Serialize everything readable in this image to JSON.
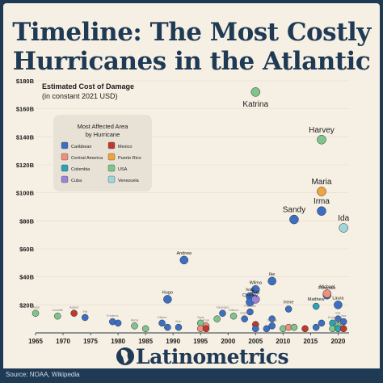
{
  "title_line1": "Timeline: The Most Costly",
  "title_line2": "Hurricanes in the Atlantic",
  "source": "Source: NOAA, Wikipedia",
  "brand": "Latinometrics",
  "chart_data": {
    "type": "scatter",
    "ylabel": "Estimated Cost of Damage",
    "ylabel_sub": "(in constant 2021 USD)",
    "xlim": [
      1965,
      2022
    ],
    "ylim": [
      0,
      180
    ],
    "x_ticks": [
      1965,
      1970,
      1975,
      1980,
      1985,
      1990,
      1995,
      2000,
      2005,
      2010,
      2015,
      2020
    ],
    "y_ticks": [
      {
        "v": 20,
        "label": "$20B"
      },
      {
        "v": 40,
        "label": "$40B"
      },
      {
        "v": 60,
        "label": "$60B"
      },
      {
        "v": 80,
        "label": "$80B"
      },
      {
        "v": 100,
        "label": "$100B"
      },
      {
        "v": 120,
        "label": "$120B"
      },
      {
        "v": 140,
        "label": "$140B"
      },
      {
        "v": 160,
        "label": "$160B"
      },
      {
        "v": 180,
        "label": "$180B"
      }
    ],
    "legend": {
      "title_line1": "Most Affected Area",
      "title_line2": "by Hurricane",
      "placement": "top-left",
      "items": [
        {
          "area": "Caribbean",
          "color": "#3a6fc4"
        },
        {
          "area": "Mexico",
          "color": "#c0392b"
        },
        {
          "area": "Central America",
          "color": "#ef8f7d"
        },
        {
          "area": "Puerto Rico",
          "color": "#f0a53b"
        },
        {
          "area": "Colombia",
          "color": "#2aa3b8"
        },
        {
          "area": "USA",
          "color": "#7fc48d"
        },
        {
          "area": "Cuba",
          "color": "#9b83d8"
        },
        {
          "area": "Venezuela",
          "color": "#9fd6dc"
        }
      ]
    },
    "points": [
      {
        "year": 2005,
        "value": 172,
        "area": "USA",
        "label": "Katrina",
        "big": true
      },
      {
        "year": 2017,
        "value": 138,
        "area": "USA",
        "label": "Harvey",
        "big": true
      },
      {
        "year": 2017,
        "value": 101,
        "area": "Puerto Rico",
        "label": "Maria",
        "big": true
      },
      {
        "year": 2012,
        "value": 81,
        "area": "Caribbean",
        "label": "Sandy",
        "big": true
      },
      {
        "year": 2017,
        "value": 87,
        "area": "Caribbean",
        "label": "Irma",
        "big": true
      },
      {
        "year": 2021,
        "value": 75,
        "area": "Venezuela",
        "label": "Ida",
        "big": true
      },
      {
        "year": 1992,
        "value": 52,
        "area": "Caribbean",
        "label": "Andrew",
        "big": false
      },
      {
        "year": 2008,
        "value": 37,
        "area": "Caribbean",
        "label": "Ike",
        "big": false
      },
      {
        "year": 2004,
        "value": 26,
        "area": "Caribbean",
        "label": "Ivan",
        "big": false
      },
      {
        "year": 2005,
        "value": 31,
        "area": "Caribbean",
        "label": "Wilma",
        "big": false
      },
      {
        "year": 2004,
        "value": 22,
        "area": "Caribbean",
        "label": "Charley",
        "big": false
      },
      {
        "year": 2005,
        "value": 24,
        "area": "Cuba",
        "label": "Rita",
        "big": false
      },
      {
        "year": 1989,
        "value": 24,
        "area": "Caribbean",
        "label": "Hugo",
        "big": false
      },
      {
        "year": 2018,
        "value": 27,
        "area": "Caribbean",
        "label": "Florence",
        "big": false
      },
      {
        "year": 2018,
        "value": 28,
        "area": "Central America",
        "label": "Michael",
        "big": false
      },
      {
        "year": 2016,
        "value": 19,
        "area": "Colombia",
        "label": "Matthew",
        "big": false
      },
      {
        "year": 2020,
        "value": 20,
        "area": "Caribbean",
        "label": "Laura",
        "big": false
      },
      {
        "year": 2011,
        "value": 17,
        "area": "Caribbean",
        "label": "Irene",
        "big": false
      },
      {
        "year": 1965,
        "value": 14,
        "area": "USA",
        "label": "Betsy",
        "big": false
      },
      {
        "year": 1969,
        "value": 12,
        "area": "USA",
        "label": "Camille",
        "big": false
      },
      {
        "year": 1972,
        "value": 14,
        "area": "Mexico",
        "label": "Agnes",
        "big": false
      },
      {
        "year": 1974,
        "value": 11,
        "area": "Caribbean",
        "label": "Fifi",
        "big": false
      },
      {
        "year": 1979,
        "value": 8,
        "area": "Caribbean",
        "label": "Frederic",
        "big": false
      },
      {
        "year": 1980,
        "value": 7,
        "area": "Caribbean",
        "label": "",
        "big": false
      },
      {
        "year": 1983,
        "value": 5,
        "area": "USA",
        "label": "Alicia",
        "big": false
      },
      {
        "year": 1985,
        "value": 3,
        "area": "USA",
        "label": "",
        "big": false
      },
      {
        "year": 1988,
        "value": 7,
        "area": "Caribbean",
        "label": "Gilbert",
        "big": false
      },
      {
        "year": 1989,
        "value": 4,
        "area": "Caribbean",
        "label": "",
        "big": false
      },
      {
        "year": 1991,
        "value": 4,
        "area": "Caribbean",
        "label": "Bob",
        "big": false
      },
      {
        "year": 1995,
        "value": 7,
        "area": "USA",
        "label": "Opal",
        "big": false
      },
      {
        "year": 1995,
        "value": 3,
        "area": "Central America",
        "label": "",
        "big": false
      },
      {
        "year": 1996,
        "value": 5,
        "area": "Central America",
        "label": "Fran",
        "big": false
      },
      {
        "year": 1996,
        "value": 3,
        "area": "Mexico",
        "label": "",
        "big": false
      },
      {
        "year": 1998,
        "value": 10,
        "area": "USA",
        "label": "",
        "big": false
      },
      {
        "year": 1999,
        "value": 14,
        "area": "Caribbean",
        "label": "Georges",
        "big": false
      },
      {
        "year": 2001,
        "value": 12,
        "area": "USA",
        "label": "Allison",
        "big": false
      },
      {
        "year": 2003,
        "value": 10,
        "area": "Caribbean",
        "label": "Isabel",
        "big": false
      },
      {
        "year": 2004,
        "value": 15,
        "area": "Caribbean",
        "label": "Frances",
        "big": false
      },
      {
        "year": 2005,
        "value": 6,
        "area": "Mexico",
        "label": "",
        "big": false
      },
      {
        "year": 2005,
        "value": 3,
        "area": "Caribbean",
        "label": "",
        "big": false
      },
      {
        "year": 2007,
        "value": 3,
        "area": "Caribbean",
        "label": "",
        "big": false
      },
      {
        "year": 2008,
        "value": 5,
        "area": "Caribbean",
        "label": "Gustav",
        "big": false
      },
      {
        "year": 2008,
        "value": 10,
        "area": "Caribbean",
        "label": "",
        "big": false
      },
      {
        "year": 2010,
        "value": 3,
        "area": "USA",
        "label": "",
        "big": false
      },
      {
        "year": 2011,
        "value": 4,
        "area": "Central America",
        "label": "",
        "big": false
      },
      {
        "year": 2012,
        "value": 4,
        "area": "USA",
        "label": "",
        "big": false
      },
      {
        "year": 2014,
        "value": 3,
        "area": "Mexico",
        "label": "",
        "big": false
      },
      {
        "year": 2016,
        "value": 4,
        "area": "Caribbean",
        "label": "",
        "big": false
      },
      {
        "year": 2017,
        "value": 7,
        "area": "Caribbean",
        "label": "",
        "big": false
      },
      {
        "year": 2019,
        "value": 7,
        "area": "Colombia",
        "label": "Dorian",
        "big": false
      },
      {
        "year": 2019,
        "value": 3,
        "area": "USA",
        "label": "",
        "big": false
      },
      {
        "year": 2020,
        "value": 10,
        "area": "Caribbean",
        "label": "Eta",
        "big": false
      },
      {
        "year": 2020,
        "value": 5,
        "area": "USA",
        "label": "Sally",
        "big": false
      },
      {
        "year": 2020,
        "value": 3,
        "area": "Colombia",
        "label": "",
        "big": false
      },
      {
        "year": 2021,
        "value": 3,
        "area": "Mexico",
        "label": "",
        "big": false
      },
      {
        "year": 2021,
        "value": 8,
        "area": "Caribbean",
        "label": "Iota",
        "big": false
      }
    ]
  }
}
